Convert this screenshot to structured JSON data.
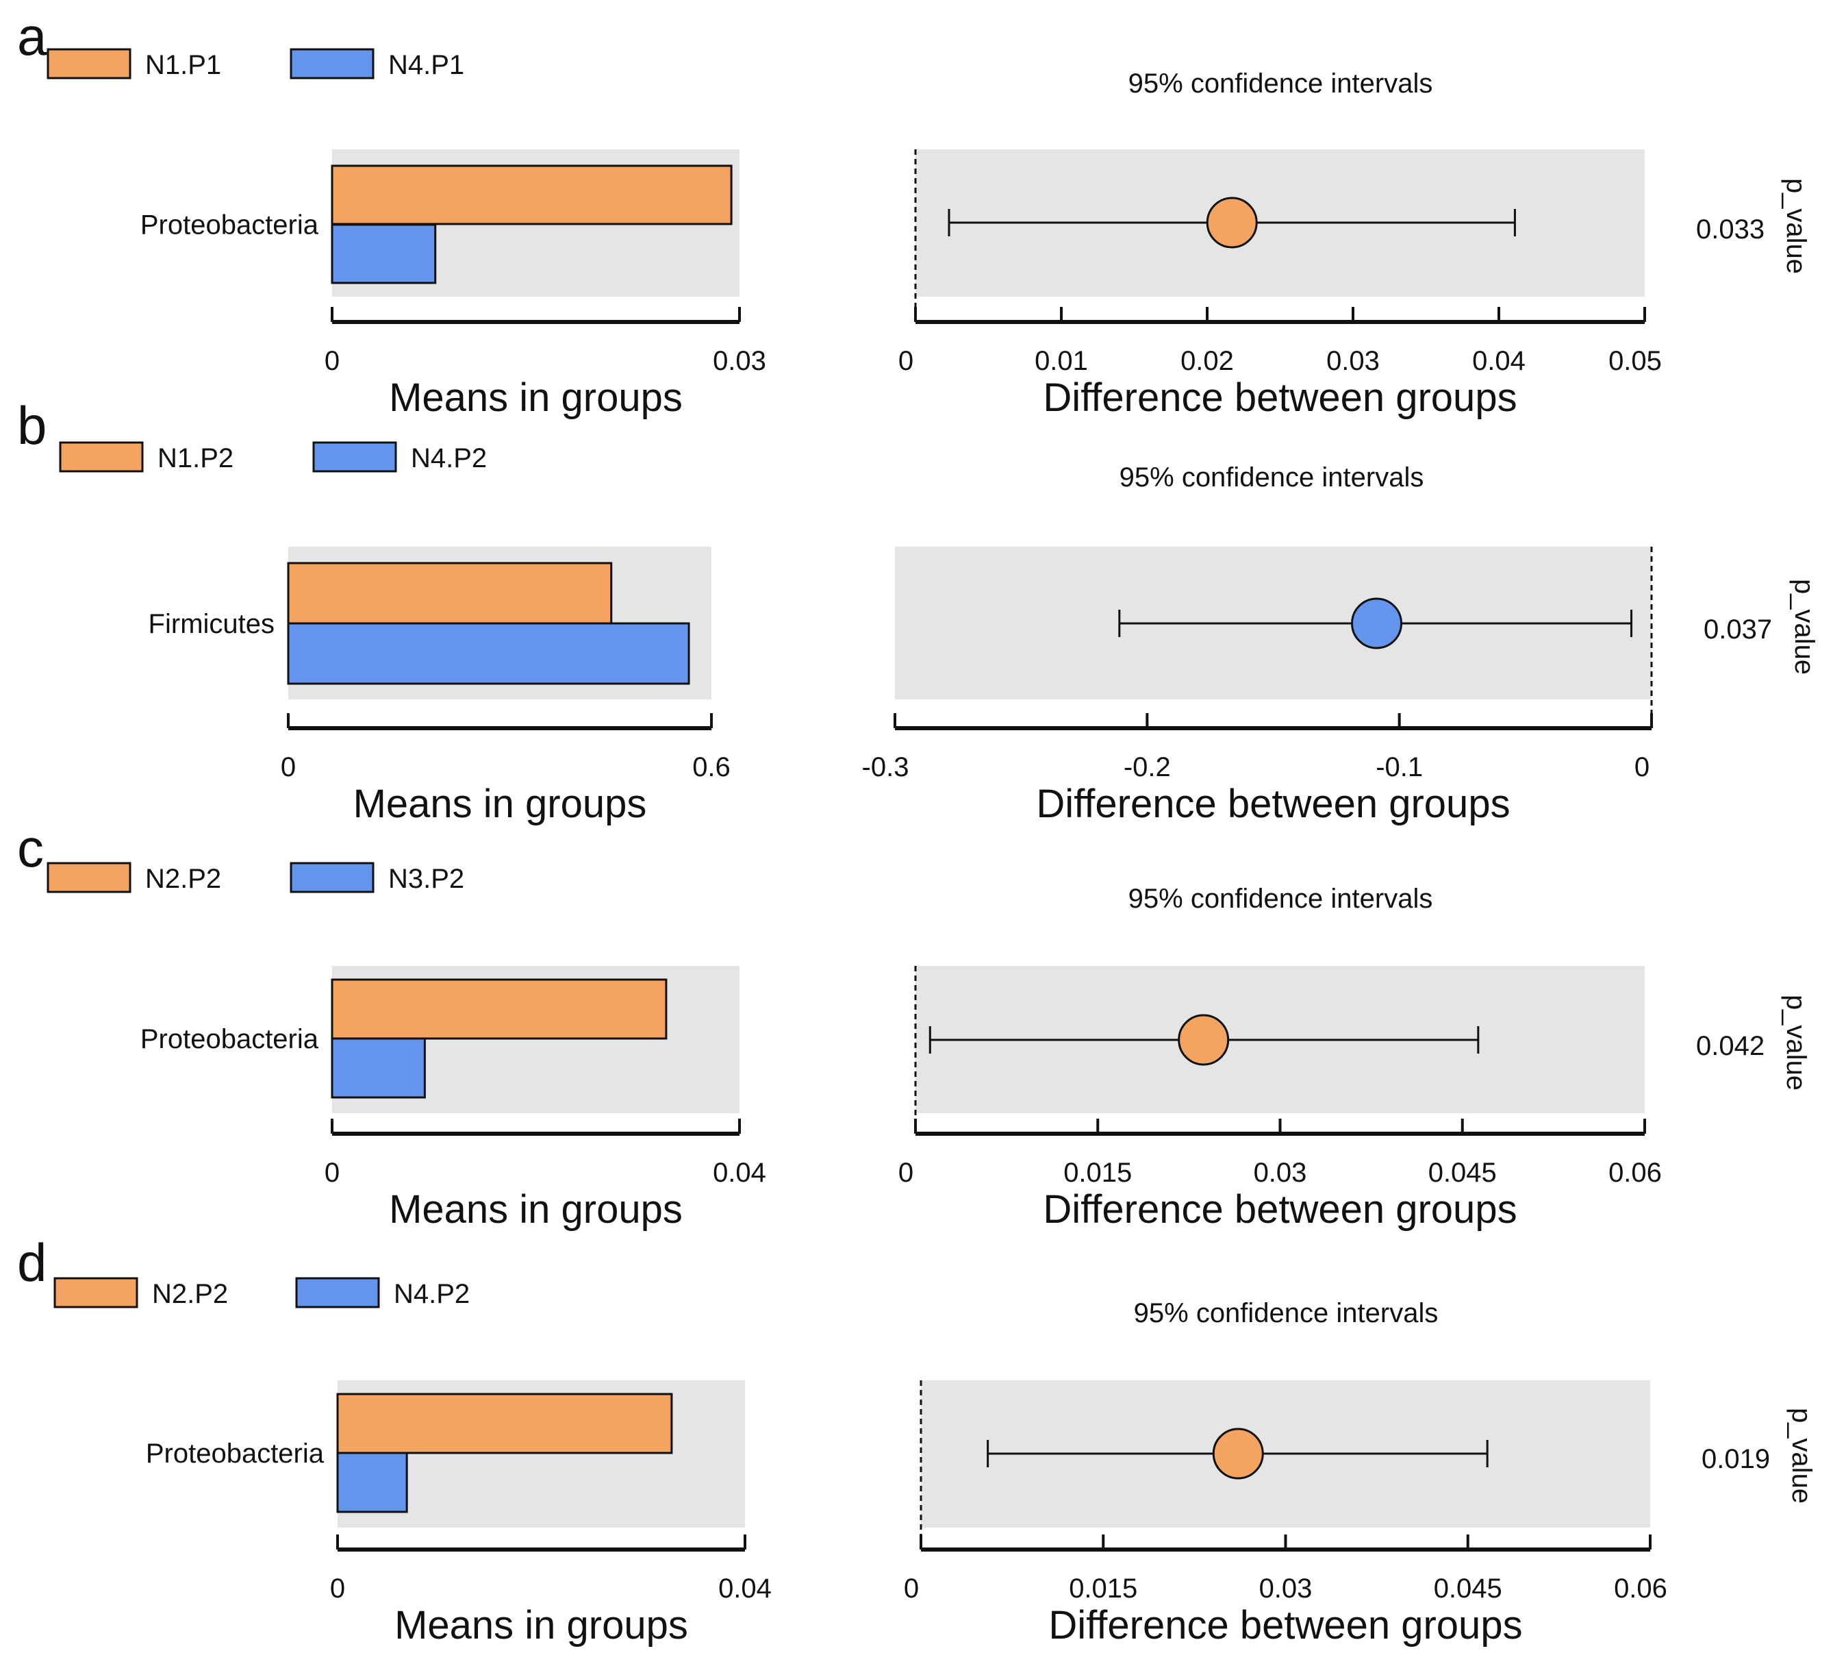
{
  "colors": {
    "group1": "#F4A460",
    "group2": "#6495ED",
    "panel_bg": "#E5E5E5",
    "stroke": "#111111"
  },
  "chart_data": [
    {
      "panel": "a",
      "type": "bar",
      "legend": [
        "N1.P1",
        "N4.P1"
      ],
      "ci_title": "95% confidence intervals",
      "category": "Proteobacteria",
      "means": {
        "values": [
          0.0294,
          0.0076
        ],
        "xlim": [
          0,
          0.03
        ],
        "ticks": [
          "0",
          "0.03"
        ],
        "xlabel": "Means in groups"
      },
      "diff": {
        "estimate": 0.0217,
        "ci": [
          0.0023,
          0.0411
        ],
        "xlim": [
          0,
          0.05
        ],
        "ticks": [
          "0",
          "0.01",
          "0.02",
          "0.03",
          "0.04",
          "0.05"
        ],
        "zero_line_at": 0,
        "xlabel": "Difference between groups",
        "marker_color": "group1"
      },
      "p_value": "0.033",
      "p_label": "p_value"
    },
    {
      "panel": "b",
      "type": "bar",
      "legend": [
        "N1.P2",
        "N4.P2"
      ],
      "ci_title": "95% confidence intervals",
      "category": "Firmicutes",
      "means": {
        "values": [
          0.458,
          0.568
        ],
        "xlim": [
          0,
          0.6
        ],
        "ticks": [
          "0",
          "0.6"
        ],
        "xlabel": "Means in groups"
      },
      "diff": {
        "estimate": -0.109,
        "ci": [
          -0.211,
          -0.008
        ],
        "xlim": [
          -0.3,
          0
        ],
        "ticks": [
          "-0.3",
          "-0.2",
          "-0.1",
          "0"
        ],
        "zero_line_at": 0,
        "xlabel": "Difference between groups",
        "marker_color": "group2"
      },
      "p_value": "0.037",
      "p_label": "p_value"
    },
    {
      "panel": "c",
      "type": "bar",
      "legend": [
        "N2.P2",
        "N3.P2"
      ],
      "ci_title": "95% confidence intervals",
      "category": "Proteobacteria",
      "means": {
        "values": [
          0.0328,
          0.0091
        ],
        "xlim": [
          0,
          0.04
        ],
        "ticks": [
          "0",
          "0.04"
        ],
        "xlabel": "Means in groups"
      },
      "diff": {
        "estimate": 0.0237,
        "ci": [
          0.0012,
          0.0463
        ],
        "xlim": [
          0,
          0.06
        ],
        "ticks": [
          "0",
          "0.015",
          "0.03",
          "0.045",
          "0.06"
        ],
        "zero_line_at": 0,
        "xlabel": "Difference between groups",
        "marker_color": "group1"
      },
      "p_value": "0.042",
      "p_label": "p_value"
    },
    {
      "panel": "d",
      "type": "bar",
      "legend": [
        "N2.P2",
        "N4.P2"
      ],
      "ci_title": "95% confidence intervals",
      "category": "Proteobacteria",
      "means": {
        "values": [
          0.0328,
          0.0068
        ],
        "xlim": [
          0,
          0.04
        ],
        "ticks": [
          "0",
          "0.04"
        ],
        "xlabel": "Means in groups"
      },
      "diff": {
        "estimate": 0.0261,
        "ci": [
          0.0055,
          0.0466
        ],
        "xlim": [
          0,
          0.06
        ],
        "ticks": [
          "0",
          "0.015",
          "0.03",
          "0.045",
          "0.06"
        ],
        "zero_line_at": 0,
        "xlabel": "Difference between groups",
        "marker_color": "group1"
      },
      "p_value": "0.019",
      "p_label": "p_value"
    }
  ]
}
